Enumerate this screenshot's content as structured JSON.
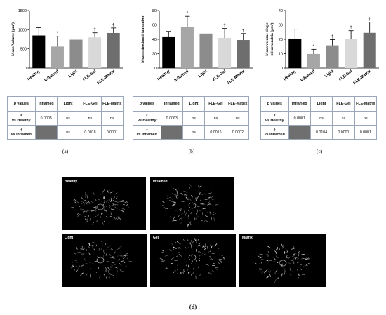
{
  "charts": [
    {
      "type": "bar",
      "ylabel": "Mean Volume (µm³)",
      "yticks": [
        0,
        500,
        1000,
        1500
      ],
      "ylim": [
        0,
        1500
      ],
      "categories": [
        "Healthy",
        "Inflamed",
        "Light",
        "FLE-Gel",
        "FLE-Matrix"
      ],
      "values": [
        850,
        560,
        740,
        800,
        915
      ],
      "errors": [
        200,
        270,
        200,
        120,
        130
      ],
      "markers": [
        "",
        "*",
        "",
        "†",
        "†"
      ],
      "colors": [
        "#000000",
        "#a6a6a6",
        "#8c8c8c",
        "#d9d9d9",
        "#6e6e6e"
      ]
    },
    {
      "type": "bar",
      "ylabel": "Mean mitochondria number",
      "yticks": [
        0,
        20,
        40,
        60,
        80
      ],
      "ylim": [
        0,
        80
      ],
      "categories": [
        "Healthy",
        "Inflamed",
        "Light",
        "FLE-Gel",
        "FLE-Matrix"
      ],
      "values": [
        43,
        57,
        48,
        42,
        39
      ],
      "errors": [
        8,
        15,
        12,
        13,
        9
      ],
      "markers": [
        "",
        "*",
        "",
        "†",
        "†"
      ],
      "colors": [
        "#000000",
        "#a6a6a6",
        "#8c8c8c",
        "#d9d9d9",
        "#6e6e6e"
      ]
    },
    {
      "type": "bar",
      "ylabel": "Mean volume single mitochondria (µm³)",
      "yticks": [
        0,
        10,
        20,
        30,
        40
      ],
      "ylim": [
        0,
        40
      ],
      "categories": [
        "Healthy",
        "Inflamed",
        "Light",
        "FLE-Gel",
        "FLE-Matrix"
      ],
      "values": [
        20.5,
        9.8,
        15.8,
        20.5,
        24.5
      ],
      "errors": [
        6.5,
        3.2,
        4,
        5.5,
        7.5
      ],
      "markers": [
        "",
        "*",
        "†",
        "†",
        "†"
      ],
      "colors": [
        "#000000",
        "#a6a6a6",
        "#8c8c8c",
        "#d9d9d9",
        "#6e6e6e"
      ]
    }
  ],
  "tables": [
    {
      "header": [
        "p values",
        "Inflamed",
        "Light",
        "FLE-Gel",
        "FLE-Matrix"
      ],
      "rows": [
        {
          "symbol": "*",
          "label": "vs Healthy",
          "cells": [
            "0.0005",
            "ns",
            "ns",
            "ns"
          ]
        },
        {
          "symbol": "†",
          "label": "vs Inflamed",
          "cells": [
            "",
            "ns",
            "0.0018",
            "0.0001"
          ]
        }
      ]
    },
    {
      "header": [
        "p values",
        "Inflamed",
        "Light",
        "FLE-Gel",
        "FLE-Matrix"
      ],
      "rows": [
        {
          "symbol": "*",
          "label": "vs Healthy",
          "cells": [
            "0.0063",
            "ns",
            "ns",
            "ns"
          ]
        },
        {
          "symbol": "†",
          "label": "vs Inflamed",
          "cells": [
            "",
            "ns",
            "0.0016",
            "0.0002"
          ]
        }
      ]
    },
    {
      "header": [
        "p values",
        "Inflamed",
        "Light",
        "FLE-Gel",
        "FLE-Matrix"
      ],
      "rows": [
        {
          "symbol": "*",
          "label": "vs Healthy",
          "cells": [
            "0.0001",
            "ns",
            "ns",
            "ns"
          ]
        },
        {
          "symbol": "†",
          "label": "vs Inflamed",
          "cells": [
            "",
            "0.0104",
            "0.0001",
            "0.0001"
          ]
        }
      ]
    }
  ],
  "panel_labels": [
    "(a)",
    "(b)",
    "(c)",
    "(d)"
  ],
  "micrographs": [
    "Healthy",
    "Inflamed",
    "Light",
    "Gel",
    "Matrix"
  ]
}
